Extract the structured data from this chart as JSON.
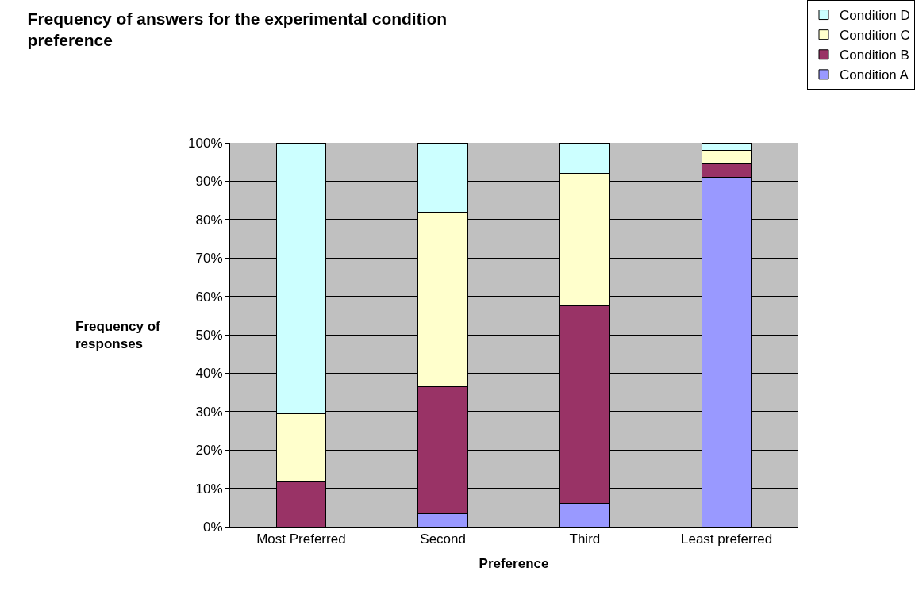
{
  "chart_data": {
    "type": "bar",
    "stacked": true,
    "title": "Frequency of answers for the experimental condition preference",
    "xlabel": "Preference",
    "ylabel": "Frequency of responses",
    "categories": [
      "Most Preferred",
      "Second",
      "Third",
      "Least preferred"
    ],
    "series": [
      {
        "name": "Condition A",
        "color": "#9999ff",
        "values": [
          0,
          3.5,
          6,
          91
        ]
      },
      {
        "name": "Condition B",
        "color": "#993366",
        "values": [
          11.8,
          33,
          51.5,
          3.5
        ]
      },
      {
        "name": "Condition C",
        "color": "#ffffcc",
        "values": [
          17.6,
          45.5,
          34.5,
          3.5
        ]
      },
      {
        "name": "Condition D",
        "color": "#ccffff",
        "values": [
          70.6,
          18,
          8,
          2
        ]
      }
    ],
    "ylim": [
      0,
      100
    ],
    "yticks": [
      {
        "value": 0,
        "label": "0%"
      },
      {
        "value": 10,
        "label": "10%"
      },
      {
        "value": 20,
        "label": "20%"
      },
      {
        "value": 30,
        "label": "30%"
      },
      {
        "value": 40,
        "label": "40%"
      },
      {
        "value": 50,
        "label": "50%"
      },
      {
        "value": 60,
        "label": "60%"
      },
      {
        "value": 70,
        "label": "70%"
      },
      {
        "value": 80,
        "label": "80%"
      },
      {
        "value": 90,
        "label": "90%"
      },
      {
        "value": 100,
        "label": "100%"
      }
    ],
    "grid": "y",
    "legend": "top right"
  }
}
